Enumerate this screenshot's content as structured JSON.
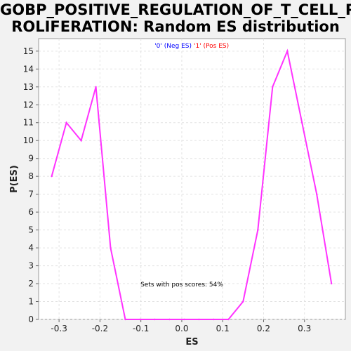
{
  "title_line1": "GOBP_POSITIVE_REGULATION_OF_T_CELL_P",
  "title_line2": "ROLIFERATION: Random ES distribution",
  "legend": {
    "neg_label": "'0' (Neg ES)",
    "pos_label": "'1' (Pos ES)",
    "neg_color": "#0000ff",
    "pos_color": "#ff0000"
  },
  "annotation": "Sets with pos scores: 54%",
  "chart_data": {
    "type": "line",
    "xlabel": "ES",
    "ylabel": "P(ES)",
    "xlim": [
      -0.35,
      0.4
    ],
    "ylim": [
      0,
      15.7
    ],
    "xticks": [
      -0.3,
      -0.2,
      -0.1,
      0.0,
      0.1,
      0.2,
      0.3
    ],
    "xtick_labels": [
      "-0.3",
      "-0.2",
      "-0.1",
      "0.0",
      "0.1",
      "0.2",
      "0.3"
    ],
    "yticks": [
      0,
      1,
      2,
      3,
      4,
      5,
      6,
      7,
      8,
      9,
      10,
      11,
      12,
      13,
      14,
      15
    ],
    "grid": true,
    "line_color": "#ff33ff",
    "series": [
      {
        "x": [
          -0.318,
          -0.282,
          -0.246,
          -0.21,
          -0.174,
          -0.138,
          -0.102,
          -0.066,
          -0.03,
          0.006,
          0.042,
          0.078,
          0.114,
          0.15,
          0.186,
          0.222,
          0.258,
          0.294,
          0.33,
          0.366
        ],
        "values": [
          8,
          11,
          10,
          13,
          4,
          0,
          0,
          0,
          0,
          0,
          0,
          0,
          0,
          1,
          5,
          13,
          15,
          11,
          7,
          2
        ]
      }
    ]
  }
}
